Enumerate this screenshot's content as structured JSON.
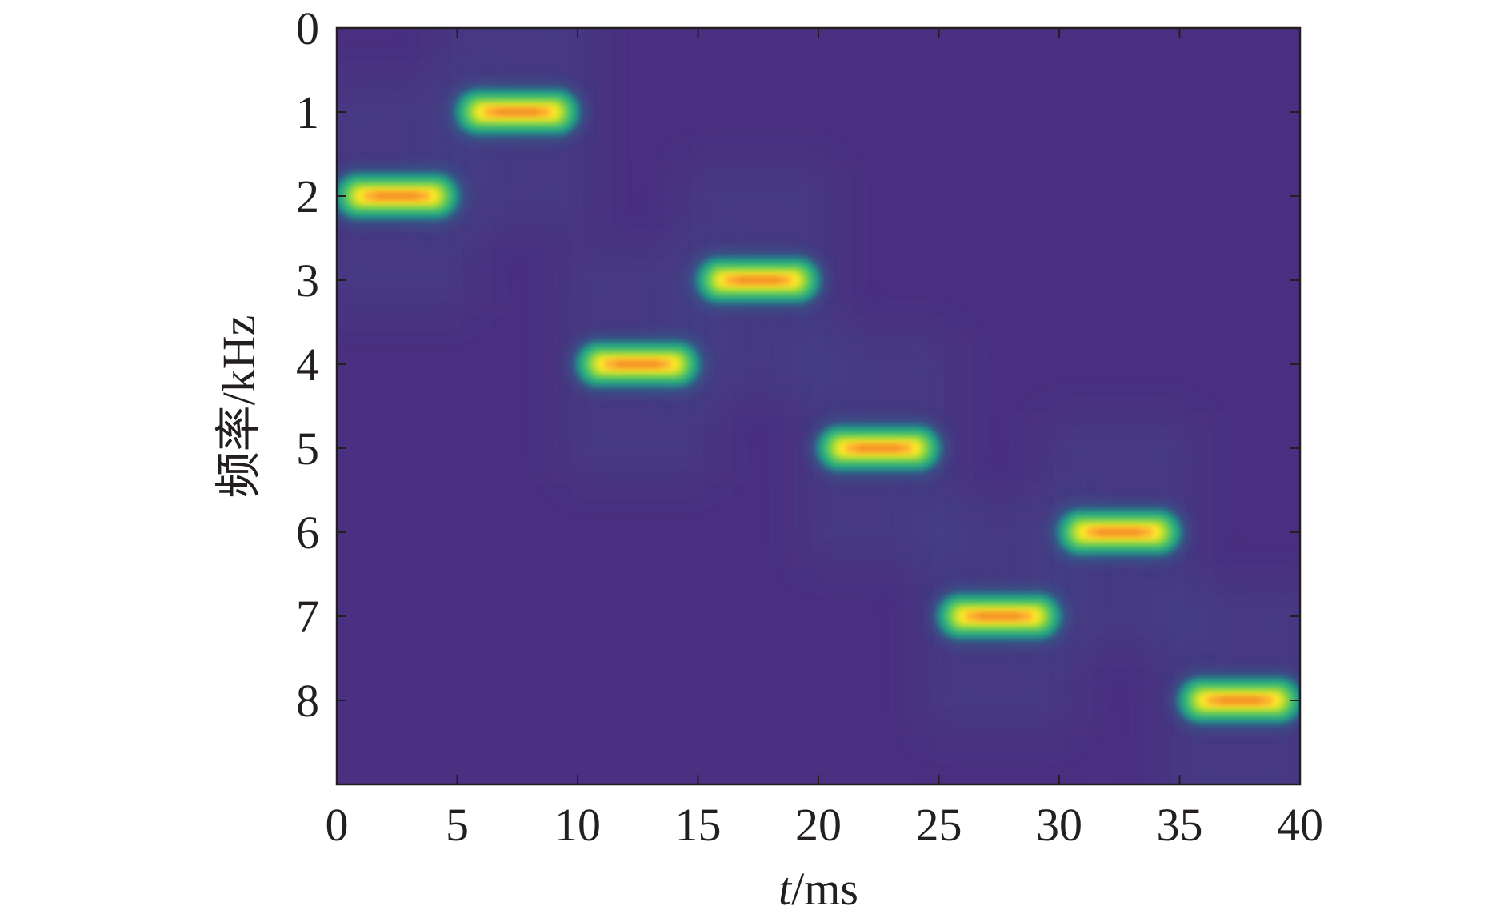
{
  "chart_data": {
    "type": "heatmap",
    "title": "",
    "xlabel_italic": "t",
    "xlabel_unit": "/ms",
    "ylabel": "频率/kHz",
    "xlim": [
      0,
      40
    ],
    "ylim": [
      9,
      0
    ],
    "y_axis_inverted": true,
    "xticks": [
      "0",
      "5",
      "10",
      "15",
      "20",
      "25",
      "30",
      "35",
      "40"
    ],
    "yticks": [
      "0",
      "1",
      "2",
      "3",
      "4",
      "5",
      "6",
      "7",
      "8"
    ],
    "grid": false,
    "colormap": [
      "#440154",
      "#46327e",
      "#365c8d",
      "#277f8e",
      "#1fa187",
      "#4ac16d",
      "#a0da39",
      "#fde725",
      "#fca636",
      "#f0821e"
    ],
    "background_color": "#4b2f80",
    "segments": [
      {
        "t_start": 0,
        "t_end": 5,
        "frequency_khz": 2
      },
      {
        "t_start": 5,
        "t_end": 10,
        "frequency_khz": 1
      },
      {
        "t_start": 10,
        "t_end": 15,
        "frequency_khz": 4
      },
      {
        "t_start": 15,
        "t_end": 20,
        "frequency_khz": 3
      },
      {
        "t_start": 20,
        "t_end": 25,
        "frequency_khz": 5
      },
      {
        "t_start": 25,
        "t_end": 30,
        "frequency_khz": 7
      },
      {
        "t_start": 30,
        "t_end": 35,
        "frequency_khz": 6
      },
      {
        "t_start": 35,
        "t_end": 40,
        "frequency_khz": 8
      }
    ]
  }
}
